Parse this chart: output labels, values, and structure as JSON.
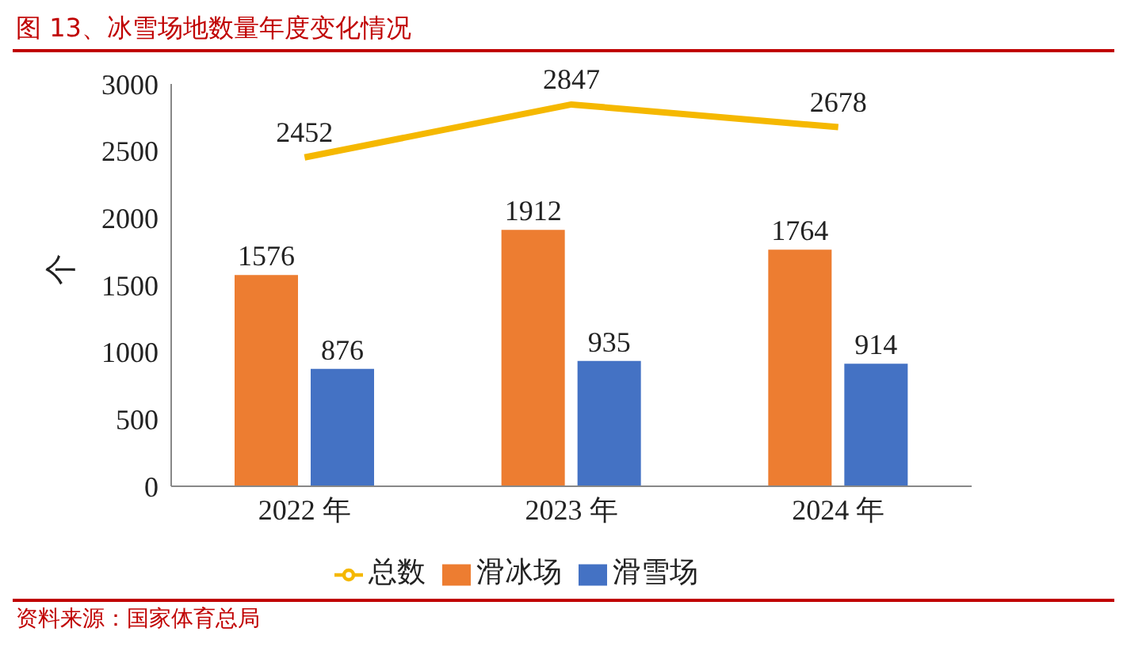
{
  "chart_data": {
    "type": "bar",
    "title": "图 13、冰雪场地数量年度变化情况",
    "ylabel": "个",
    "categories": [
      "2022 年",
      "2023 年",
      "2024 年"
    ],
    "series": [
      {
        "name": "滑冰场",
        "color": "#ed7d31",
        "values": [
          1576,
          1912,
          1764
        ]
      },
      {
        "name": "滑雪场",
        "color": "#4472c4",
        "values": [
          876,
          935,
          914
        ]
      },
      {
        "name": "总数",
        "type": "line",
        "color": "#f5b800",
        "values": [
          2452,
          2847,
          2678
        ]
      }
    ],
    "ylim": [
      0,
      3000
    ],
    "yticks": [
      0,
      500,
      1000,
      1500,
      2000,
      2500,
      3000
    ],
    "grid": false,
    "legend": "bottom",
    "marker": "none",
    "data_labels": true,
    "annotations": [
      "资料来源：国家体育总局"
    ]
  }
}
